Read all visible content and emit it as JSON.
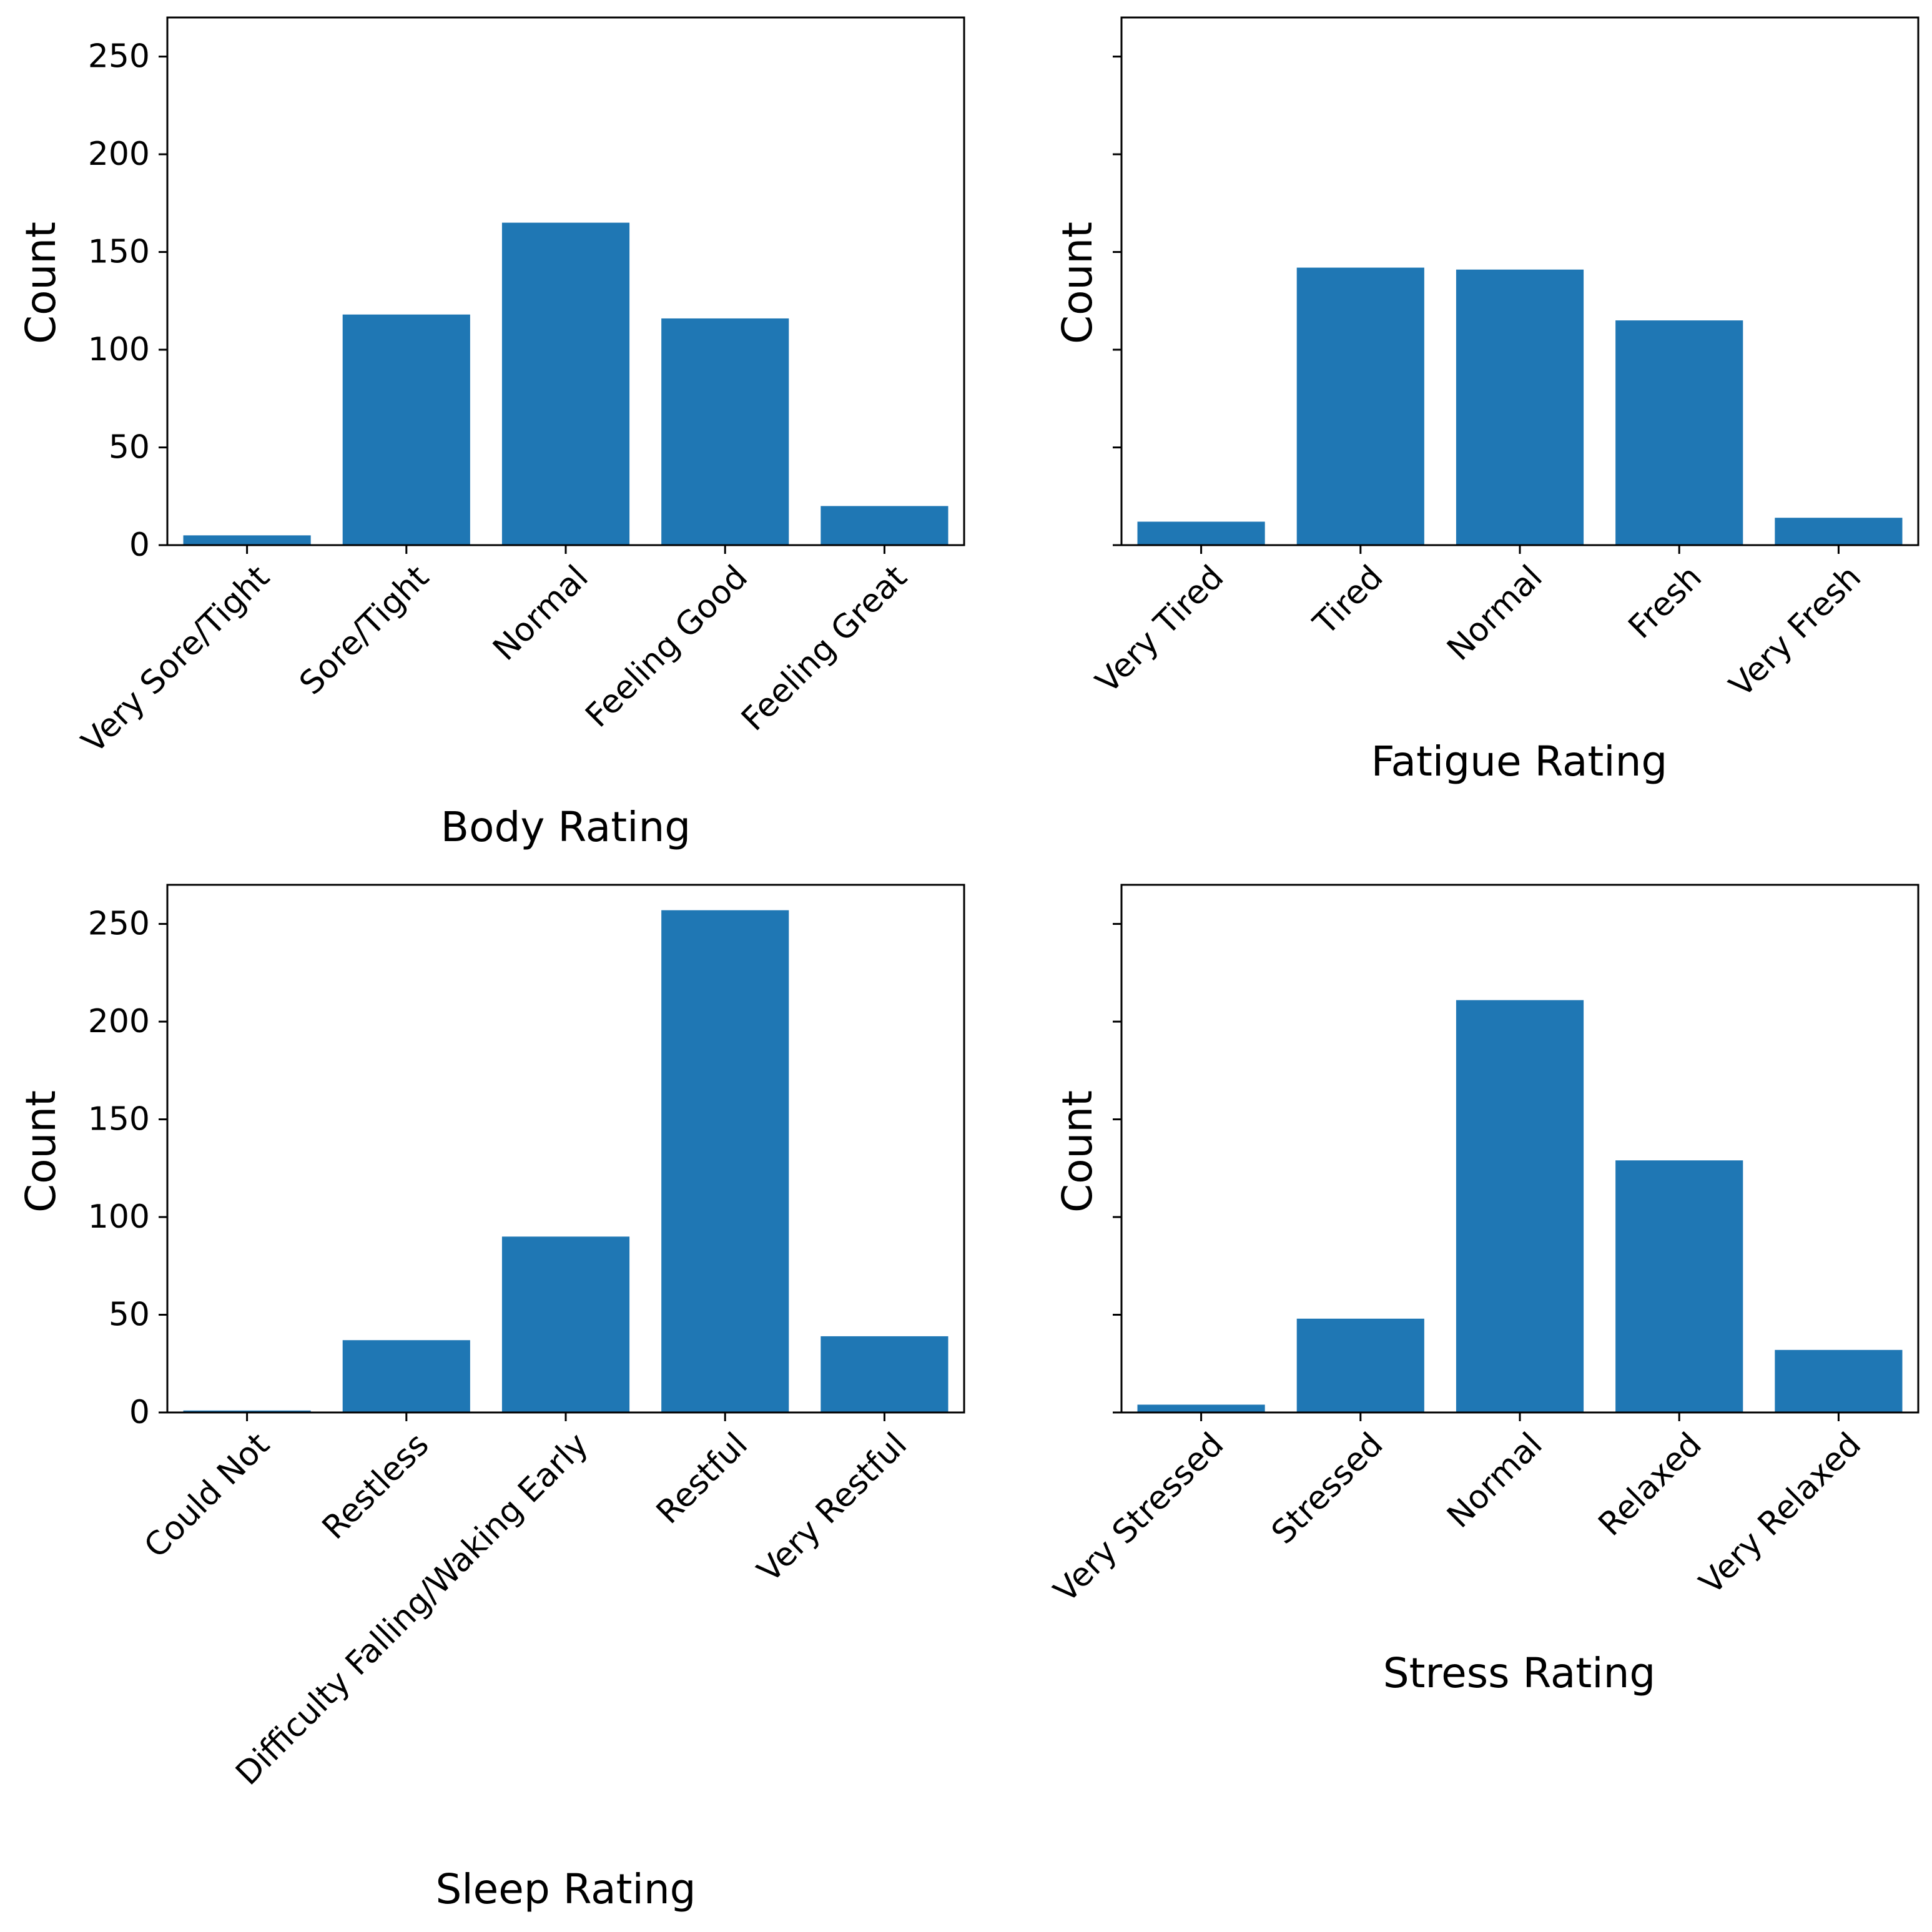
{
  "colors": {
    "bar": "#1f77b4",
    "axis": "#000000",
    "background": "#ffffff"
  },
  "chart_data": [
    {
      "type": "bar",
      "title": "",
      "xlabel": "Body Rating",
      "ylabel": "Count",
      "ylim": [
        0,
        270
      ],
      "yticks": [
        0,
        50,
        100,
        150,
        200,
        250
      ],
      "show_ytick_labels": true,
      "categories": [
        "Very Sore/Tight",
        "Sore/Tight",
        "Normal",
        "Feeling Good",
        "Feeling Great"
      ],
      "values": [
        5,
        118,
        165,
        116,
        20
      ]
    },
    {
      "type": "bar",
      "title": "",
      "xlabel": "Fatigue Rating",
      "ylabel": "Count",
      "ylim": [
        0,
        270
      ],
      "yticks": [
        0,
        50,
        100,
        150,
        200,
        250
      ],
      "show_ytick_labels": false,
      "categories": [
        "Very Tired",
        "Tired",
        "Normal",
        "Fresh",
        "Very Fresh"
      ],
      "values": [
        12,
        142,
        141,
        115,
        14
      ]
    },
    {
      "type": "bar",
      "title": "",
      "xlabel": "Sleep Rating",
      "ylabel": "Count",
      "ylim": [
        0,
        270
      ],
      "yticks": [
        0,
        50,
        100,
        150,
        200,
        250
      ],
      "show_ytick_labels": true,
      "categories": [
        "Could Not",
        "Restless",
        "Difficulty Falling/Waking Early",
        "Restful",
        "Very Restful"
      ],
      "values": [
        1,
        37,
        90,
        257,
        39
      ]
    },
    {
      "type": "bar",
      "title": "",
      "xlabel": "Stress Rating",
      "ylabel": "Count",
      "ylim": [
        0,
        270
      ],
      "yticks": [
        0,
        50,
        100,
        150,
        200,
        250
      ],
      "show_ytick_labels": false,
      "categories": [
        "Very Stressed",
        "Stressed",
        "Normal",
        "Relaxed",
        "Very Relaxed"
      ],
      "values": [
        4,
        48,
        211,
        129,
        32
      ]
    }
  ]
}
